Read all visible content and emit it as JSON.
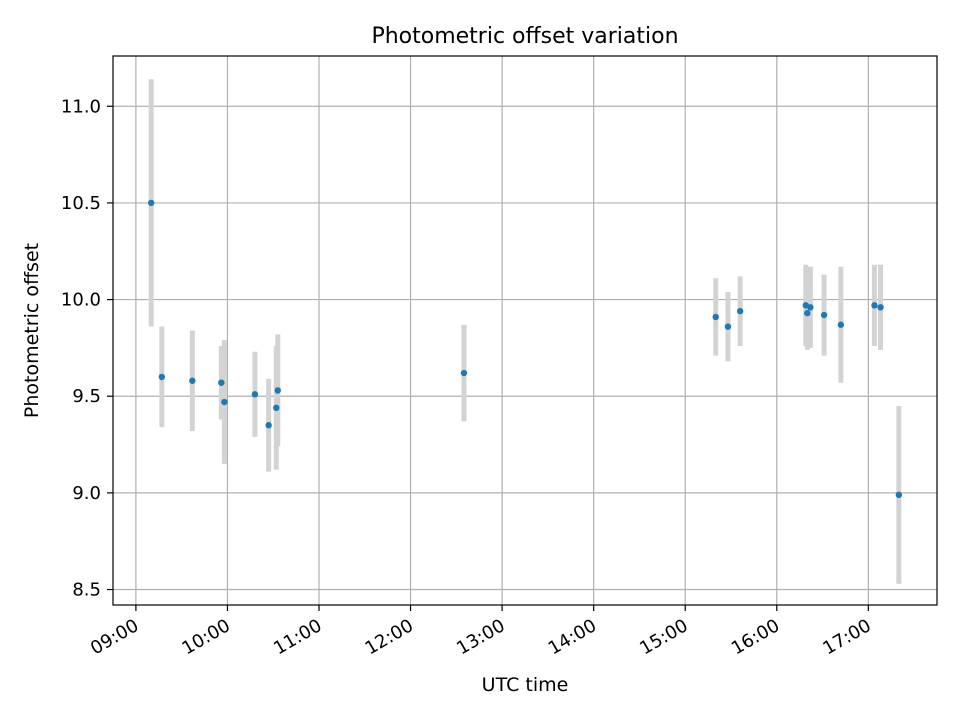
{
  "chart_data": {
    "type": "scatter",
    "title": "Photometric offset variation",
    "xlabel": "UTC time",
    "ylabel": "Photometric offset",
    "x_ticks": [
      "09:00",
      "10:00",
      "11:00",
      "12:00",
      "13:00",
      "14:00",
      "15:00",
      "16:00",
      "17:00"
    ],
    "y_ticks": [
      "8.5",
      "9.0",
      "9.5",
      "10.0",
      "10.5",
      "11.0"
    ],
    "xlim": [
      "08:45",
      "17:45"
    ],
    "ylim": [
      8.42,
      11.26
    ],
    "grid": true,
    "marker_color": "#1f77b4",
    "errorbar_color": "#d3d3d3",
    "points": [
      {
        "t": "09:10",
        "y": 10.5,
        "err": 0.64
      },
      {
        "t": "09:17",
        "y": 9.6,
        "err": 0.26
      },
      {
        "t": "09:37",
        "y": 9.58,
        "err": 0.26
      },
      {
        "t": "09:56",
        "y": 9.57,
        "err": 0.19
      },
      {
        "t": "09:58",
        "y": 9.47,
        "err": 0.32
      },
      {
        "t": "10:18",
        "y": 9.51,
        "err": 0.22
      },
      {
        "t": "10:27",
        "y": 9.35,
        "err": 0.24
      },
      {
        "t": "10:32",
        "y": 9.44,
        "err": 0.32
      },
      {
        "t": "10:33",
        "y": 9.53,
        "err": 0.29
      },
      {
        "t": "12:35",
        "y": 9.62,
        "err": 0.25
      },
      {
        "t": "15:20",
        "y": 9.91,
        "err": 0.2
      },
      {
        "t": "15:28",
        "y": 9.86,
        "err": 0.18
      },
      {
        "t": "15:36",
        "y": 9.94,
        "err": 0.18
      },
      {
        "t": "16:19",
        "y": 9.97,
        "err": 0.21
      },
      {
        "t": "16:20",
        "y": 9.93,
        "err": 0.19
      },
      {
        "t": "16:22",
        "y": 9.96,
        "err": 0.21
      },
      {
        "t": "16:31",
        "y": 9.92,
        "err": 0.21
      },
      {
        "t": "16:42",
        "y": 9.87,
        "err": 0.3
      },
      {
        "t": "17:04",
        "y": 9.97,
        "err": 0.21
      },
      {
        "t": "17:08",
        "y": 9.96,
        "err": 0.22
      },
      {
        "t": "17:20",
        "y": 8.99,
        "err": 0.46
      }
    ]
  }
}
